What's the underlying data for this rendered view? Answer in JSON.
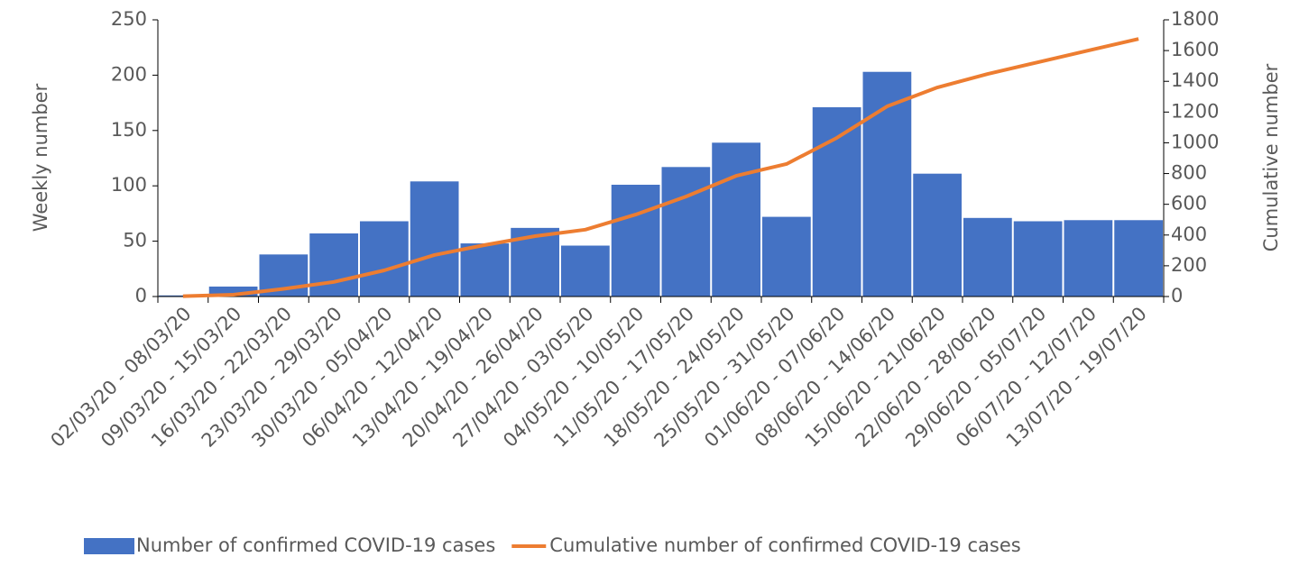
{
  "chart_data": {
    "type": "bar_line",
    "categories": [
      "02/03/20 - 08/03/20",
      "09/03/20 - 15/03/20",
      "16/03/20 - 22/03/20",
      "23/03/20 - 29/03/20",
      "30/03/20 - 05/04/20",
      "06/04/20 - 12/04/20",
      "13/04/20 - 19/04/20",
      "20/04/20 - 26/04/20",
      "27/04/20 - 03/05/20",
      "04/05/20 - 10/05/20",
      "11/05/20 - 17/05/20",
      "18/05/20 - 24/05/20",
      "25/05/20 - 31/05/20",
      "01/06/20 - 07/06/20",
      "08/06/20 - 14/06/20",
      "15/06/20 - 21/06/20",
      "22/06/20 - 28/06/20",
      "29/06/20 - 05/07/20",
      "06/07/20 - 12/07/20",
      "13/07/20 - 19/07/20"
    ],
    "series": [
      {
        "name": "Number of confirmed COVID-19 cases",
        "color": "#4472c4",
        "type": "bar",
        "values": [
          1,
          9,
          38,
          57,
          68,
          104,
          48,
          62,
          46,
          101,
          117,
          139,
          72,
          171,
          203,
          111,
          71,
          68,
          69,
          69
        ]
      },
      {
        "name": "Cumulative number of confirmed COVID-19 cases",
        "color": "#ed7d31",
        "type": "line",
        "axis": "y2",
        "values": [
          2,
          12,
          50,
          95,
          170,
          270,
          335,
          393,
          435,
          533,
          650,
          785,
          862,
          1032,
          1237,
          1360,
          1448,
          1524,
          1600,
          1676
        ]
      }
    ],
    "ylabel": "Weekly number",
    "y2label": "Cumulative number",
    "ylim": [
      0,
      250
    ],
    "yticks": [
      0,
      50,
      100,
      150,
      200,
      250
    ],
    "y2lim": [
      0,
      1800
    ],
    "y2ticks": [
      0,
      200,
      400,
      600,
      800,
      1000,
      1200,
      1400,
      1600,
      1800
    ],
    "legend": "bottom"
  }
}
